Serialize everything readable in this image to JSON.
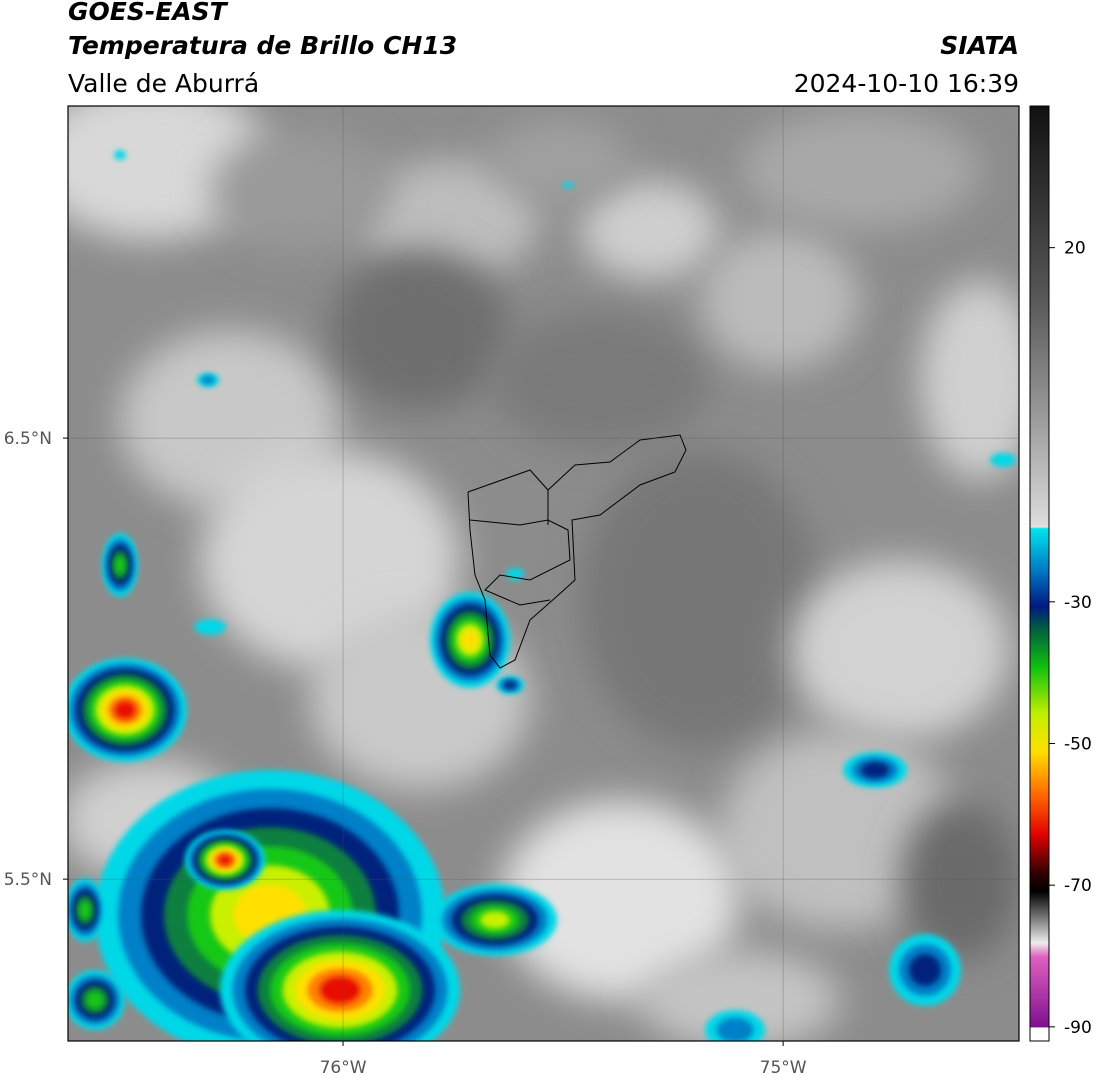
{
  "header": {
    "title": "GOES-EAST",
    "subtitle": "Temperatura de Brillo CH13",
    "region": "Valle de Aburrá",
    "source": "SIATA",
    "datetime": "2024-10-10 16:39"
  },
  "map": {
    "lat_range": [
      5.133,
      7.253
    ],
    "lon_range": [
      -76.625,
      -74.464
    ],
    "lat_ticks": [
      {
        "value": 6.5,
        "label": "6.5°N"
      },
      {
        "value": 5.5,
        "label": "5.5°N"
      }
    ],
    "lon_ticks": [
      {
        "value": -76,
        "label": "76°W"
      },
      {
        "value": -75,
        "label": "75°W"
      }
    ]
  },
  "colorbar": {
    "range": [
      -92,
      40
    ],
    "ticks": [
      20,
      -30,
      -50,
      -70,
      -90
    ]
  }
}
